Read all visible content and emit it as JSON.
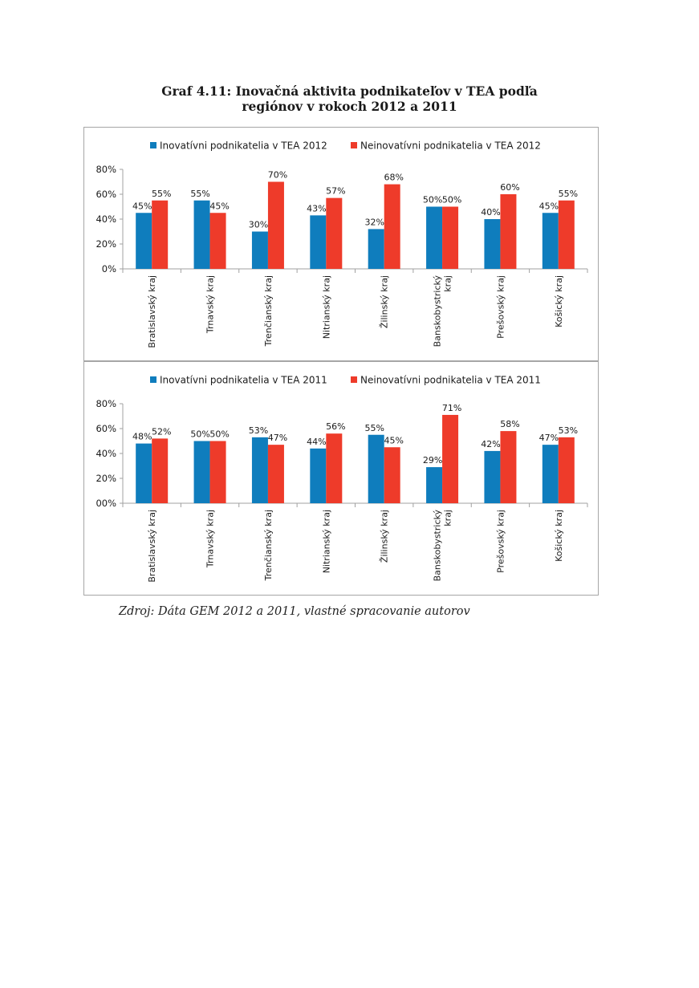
{
  "title": {
    "line1": "Graf 4.11: Inovačná aktivita podnikateľov v TEA podľa",
    "line2": "regiónov v rokoch 2012 a 2011"
  },
  "source": "Zdroj: Dáta GEM 2012 a 2011, vlastné spracovanie autorov",
  "colors": {
    "innovative": "#0f7dbd",
    "non_innovative": "#ee3b2a",
    "axis": "#a0a0a0"
  },
  "chart_data": [
    {
      "type": "bar",
      "categories": [
        [
          "Bratislavský kraj"
        ],
        [
          "Trnavský kraj"
        ],
        [
          "Trenčianský kraj"
        ],
        [
          "Nitrianský kraj"
        ],
        [
          "Žilinský kraj"
        ],
        [
          "Banskobystrický",
          "kraj"
        ],
        [
          "Prešovský kraj"
        ],
        [
          "Košický kraj"
        ]
      ],
      "series": [
        {
          "name": "Inovatívni podnikatelia v TEA 2012",
          "values": [
            45,
            55,
            30,
            43,
            32,
            50,
            40,
            45
          ],
          "labels": [
            "45%",
            "55%",
            "30%",
            "43%",
            "32%",
            "50%",
            "40%",
            "45%"
          ]
        },
        {
          "name": "Neinovatívni podnikatelia v TEA 2012",
          "values": [
            55,
            45,
            70,
            57,
            68,
            50,
            60,
            55
          ],
          "labels": [
            "55%",
            "45%",
            "70%",
            "57%",
            "68%",
            "50%",
            "60%",
            "55%"
          ]
        }
      ],
      "yticks": [
        "0%",
        "20%",
        "40%",
        "60%",
        "80%"
      ],
      "ylim": [
        0,
        80
      ],
      "legend": "top",
      "grid": false
    },
    {
      "type": "bar",
      "categories": [
        [
          "Bratislavský kraj"
        ],
        [
          "Trnavský kraj"
        ],
        [
          "Trenčianský kraj"
        ],
        [
          "Nitrianský kraj"
        ],
        [
          "Žilinský kraj"
        ],
        [
          "Banskobystrický",
          "kraj"
        ],
        [
          "Prešovský kraj"
        ],
        [
          "Košický kraj"
        ]
      ],
      "series": [
        {
          "name": "Inovatívni podnikatelia v TEA 2011",
          "values": [
            48,
            50,
            53,
            44,
            55,
            29,
            42,
            47
          ],
          "labels": [
            "48%",
            "50%",
            "53%",
            "44%",
            "55%",
            "29%",
            "42%",
            "47%"
          ]
        },
        {
          "name": "Neinovatívni podnikatelia v TEA 2011",
          "values": [
            52,
            50,
            47,
            56,
            45,
            71,
            58,
            53
          ],
          "labels": [
            "52%",
            "50%",
            "47%",
            "56%",
            "45%",
            "71%",
            "58%",
            "53%"
          ]
        }
      ],
      "yticks": [
        "00%",
        "20%",
        "40%",
        "60%",
        "80%"
      ],
      "ylim": [
        0,
        80
      ],
      "legend": "top",
      "grid": false
    }
  ]
}
